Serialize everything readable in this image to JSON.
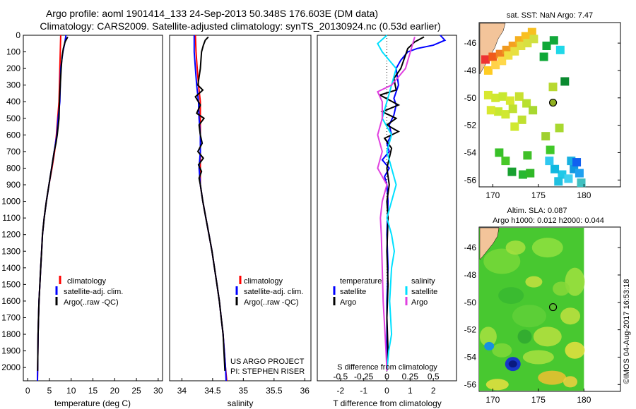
{
  "figure": {
    "title_line1": "Argo profile: aoml 1901414_133 24-Sep-2013 50.348S 176.603E (DM data)",
    "title_line2": "Climatology: CARS2009. Satellite-adjusted climatology: synTS_20130924.nc (0.53d earlier)",
    "project_line1": "US ARGO PROJECT",
    "project_line2": "PI: STEPHEN RISER",
    "watermark": "©IMOS 04-Aug-2017 16:53:18"
  },
  "colors": {
    "climatology": "#ff0000",
    "satellite": "#0000ff",
    "argo": "#000000",
    "s_satellite": "#00e0ff",
    "s_argo": "#e040e0"
  },
  "chart_data": [
    {
      "type": "line",
      "id": "temperature",
      "xlabel": "temperature (deg C)",
      "ylabel": "",
      "xlim": [
        -1,
        31
      ],
      "xticks": [
        "0",
        "5",
        "10",
        "15",
        "20",
        "25",
        "30"
      ],
      "xtick_values": [
        0,
        5,
        10,
        15,
        20,
        25,
        30
      ],
      "ylim": [
        0,
        2080
      ],
      "yticks": [
        "0",
        "100",
        "200",
        "300",
        "400",
        "500",
        "600",
        "700",
        "800",
        "900",
        "1000",
        "1100",
        "1200",
        "1300",
        "1400",
        "1500",
        "1600",
        "1700",
        "1800",
        "1900",
        "2000"
      ],
      "ytick_values": [
        0,
        100,
        200,
        300,
        400,
        500,
        600,
        700,
        800,
        900,
        1000,
        1100,
        1200,
        1300,
        1400,
        1500,
        1600,
        1700,
        1800,
        1900,
        2000
      ],
      "legend": [
        "climatology",
        "satellite-adj. clim.",
        "Argo(..raw -QC)"
      ],
      "legend_placement": "lower-center",
      "series": [
        {
          "name": "climatology",
          "color_key": "climatology",
          "x": [
            7.6,
            7.5,
            7.4,
            7.3,
            7.2,
            6.9,
            6.6,
            6.2,
            5.6,
            4.9,
            4.3,
            3.8,
            3.4,
            3.2,
            3.0,
            2.8,
            2.6,
            2.5,
            2.4,
            2.35,
            2.3,
            2.25
          ],
          "y": [
            0,
            100,
            200,
            300,
            400,
            500,
            600,
            700,
            800,
            900,
            1000,
            1100,
            1200,
            1300,
            1400,
            1500,
            1600,
            1700,
            1800,
            1900,
            2000,
            2080
          ]
        },
        {
          "name": "satellite-adj. clim.",
          "color_key": "satellite",
          "x": [
            8.8,
            8.5,
            8.1,
            7.6,
            7.4,
            7.0,
            6.7,
            6.1,
            5.5,
            4.9,
            4.3,
            3.8,
            3.4,
            3.2,
            3.0,
            2.8,
            2.6,
            2.5,
            2.4,
            2.35,
            2.3,
            2.25
          ],
          "y": [
            0,
            50,
            100,
            200,
            400,
            500,
            600,
            700,
            800,
            900,
            1000,
            1100,
            1200,
            1300,
            1400,
            1500,
            1600,
            1700,
            1800,
            1900,
            2000,
            2080
          ]
        },
        {
          "name": "Argo(..raw -QC)",
          "color_key": "argo",
          "x": [
            9.2,
            8.6,
            8.2,
            7.9,
            7.7,
            7.5,
            7.3,
            7.2,
            6.8,
            6.5,
            6.1,
            5.5,
            4.9,
            4.3,
            3.8,
            3.4,
            3.2,
            3.0,
            2.8,
            2.6,
            2.5,
            2.4,
            2.35,
            2.3
          ],
          "y": [
            10,
            40,
            80,
            130,
            200,
            300,
            400,
            500,
            600,
            650,
            700,
            800,
            900,
            1000,
            1100,
            1200,
            1300,
            1400,
            1500,
            1600,
            1700,
            1800,
            1900,
            2020
          ]
        }
      ]
    },
    {
      "type": "line",
      "id": "salinity",
      "xlabel": "salinity",
      "xlim": [
        33.8,
        36.1
      ],
      "xticks": [
        "34",
        "34.5",
        "35",
        "35.5",
        "36"
      ],
      "xtick_values": [
        34,
        34.5,
        35,
        35.5,
        36
      ],
      "ylim": [
        0,
        2080
      ],
      "legend": [
        "climatology",
        "satellite-adj. clim.",
        "Argo(..raw -QC)"
      ],
      "legend_placement": "lower-center",
      "series": [
        {
          "name": "climatology",
          "color_key": "climatology",
          "x": [
            34.22,
            34.23,
            34.25,
            34.27,
            34.3,
            34.3,
            34.3,
            34.3,
            34.3,
            34.3,
            34.34,
            34.39,
            34.44,
            34.49,
            34.53,
            34.57,
            34.61,
            34.64,
            34.67,
            34.69,
            34.71,
            34.73
          ],
          "y": [
            0,
            100,
            200,
            300,
            400,
            500,
            600,
            700,
            800,
            900,
            1000,
            1100,
            1200,
            1300,
            1400,
            1500,
            1600,
            1700,
            1800,
            1900,
            2000,
            2080
          ]
        },
        {
          "name": "satellite-adj. clim.",
          "color_key": "satellite",
          "x": [
            34.2,
            34.2,
            34.22,
            34.24,
            34.27,
            34.28,
            34.3,
            34.3,
            34.28,
            34.3,
            34.34,
            34.39,
            34.44,
            34.49,
            34.53,
            34.57,
            34.61,
            34.64,
            34.67,
            34.69,
            34.71,
            34.72
          ],
          "y": [
            0,
            100,
            200,
            300,
            400,
            500,
            600,
            700,
            800,
            900,
            1000,
            1100,
            1200,
            1300,
            1400,
            1500,
            1600,
            1700,
            1800,
            1900,
            2000,
            2080
          ]
        },
        {
          "name": "Argo(..raw -QC)",
          "color_key": "argo",
          "x": [
            34.43,
            34.38,
            34.35,
            34.32,
            34.3,
            34.26,
            34.34,
            34.22,
            34.3,
            34.24,
            34.36,
            34.28,
            34.3,
            34.33,
            34.26,
            34.35,
            34.27,
            34.32,
            34.28,
            34.3,
            34.34,
            34.39,
            34.44,
            34.49,
            34.53,
            34.57,
            34.61,
            34.64,
            34.67,
            34.7
          ],
          "y": [
            10,
            30,
            60,
            100,
            200,
            300,
            330,
            370,
            420,
            470,
            500,
            540,
            600,
            650,
            700,
            740,
            780,
            820,
            860,
            900,
            1000,
            1100,
            1200,
            1300,
            1400,
            1500,
            1600,
            1700,
            1800,
            2020
          ]
        }
      ]
    },
    {
      "type": "line",
      "id": "differences",
      "xlabel": "T difference from climatology",
      "xlabel_top": "S difference from climatology",
      "xlim_T": [
        -3,
        3
      ],
      "xticks_T": [
        "-2",
        "-1",
        "0",
        "1",
        "2"
      ],
      "xtick_values_T": [
        -2,
        -1,
        0,
        1,
        2
      ],
      "xticks_S": [
        "-0.5",
        "-0.25",
        "0",
        "0.25",
        "0.5"
      ],
      "xtick_values_S": [
        -0.5,
        -0.25,
        0,
        0.25,
        0.5
      ],
      "ylim": [
        0,
        2080
      ],
      "legend_left_title": "temperature",
      "legend_right_title": "salinity",
      "legend_left": [
        "satellite",
        "Argo"
      ],
      "legend_right": [
        "satellite",
        "Argo"
      ],
      "series": [
        {
          "name": "T satellite",
          "color_key": "satellite",
          "x": [
            2.3,
            2.5,
            2.0,
            1.3,
            0.9,
            0.6,
            0.4,
            0.5,
            0.3,
            0.4,
            0.3,
            0.1,
            0.2,
            0.0,
            0.1,
            -0.2,
            0.1,
            -0.1,
            0.0,
            0.05,
            0.0,
            0.05,
            0.0,
            0.0,
            0.0
          ],
          "y": [
            0,
            30,
            60,
            80,
            100,
            150,
            200,
            300,
            380,
            420,
            480,
            540,
            600,
            650,
            700,
            750,
            800,
            850,
            900,
            1000,
            1200,
            1400,
            1600,
            1800,
            2020
          ]
        },
        {
          "name": "T Argo",
          "color_key": "argo",
          "x": [
            1.6,
            1.2,
            0.9,
            0.8,
            0.6,
            0.3,
            0.4,
            -0.3,
            0.5,
            -0.2,
            0.4,
            0.0,
            0.5,
            -0.1,
            0.2,
            0.1,
            0.0,
            0.1,
            0.0,
            0.05,
            0.0,
            0.05,
            0.0,
            0.05,
            0.0
          ],
          "y": [
            10,
            40,
            80,
            120,
            200,
            260,
            330,
            360,
            420,
            460,
            500,
            540,
            580,
            620,
            680,
            740,
            800,
            900,
            1000,
            1100,
            1300,
            1500,
            1700,
            1900,
            2020
          ]
        },
        {
          "name": "S satellite",
          "color_key": "s_satellite",
          "x": [
            0.0,
            -0.1,
            -0.05,
            0.1,
            0.05,
            0.0,
            -0.05,
            0.05,
            0.0,
            0.05,
            0.1,
            0.05,
            0.0,
            0.05,
            0.08,
            0.05,
            0.03,
            0.05,
            0.02,
            0.0
          ],
          "y": [
            0,
            50,
            100,
            200,
            300,
            400,
            500,
            600,
            700,
            800,
            900,
            1000,
            1100,
            1200,
            1300,
            1400,
            1600,
            1800,
            1900,
            2020
          ]
        },
        {
          "name": "S Argo",
          "color_key": "s_argo",
          "x": [
            0.3,
            0.2,
            0.05,
            -0.1,
            -0.05,
            -0.05,
            -0.1,
            -0.05,
            -0.1,
            -0.05,
            0.0,
            -0.05,
            -0.07,
            -0.06,
            -0.05,
            -0.04,
            -0.02,
            -0.01,
            0.0
          ],
          "y": [
            10,
            200,
            300,
            340,
            400,
            500,
            600,
            700,
            800,
            850,
            900,
            1000,
            1100,
            1200,
            1400,
            1600,
            1800,
            1900,
            2020
          ]
        }
      ]
    },
    {
      "type": "heatmap",
      "id": "sst_map",
      "title": "sat. SST: NaN Argo: 7.47",
      "xlim": [
        168.5,
        184
      ],
      "ylim": [
        -56.5,
        -44.5
      ],
      "xticks": [
        "170",
        "175",
        "180"
      ],
      "xtick_values": [
        170,
        175,
        180
      ],
      "yticks": [
        "-46",
        "-48",
        "-50",
        "-52",
        "-54",
        "-56"
      ],
      "ytick_values": [
        -46,
        -48,
        -50,
        -52,
        -54,
        -56
      ],
      "marker": {
        "lon": 176.603,
        "lat": -50.348
      }
    },
    {
      "type": "heatmap",
      "id": "sla_map",
      "title_line1": "Altim. SLA: 0.087",
      "title_line2": "Argo h1000: 0.012 h2000: 0.044",
      "xlim": [
        168.5,
        184
      ],
      "ylim": [
        -56.5,
        -44.5
      ],
      "xticks": [
        "170",
        "175",
        "180"
      ],
      "xtick_values": [
        170,
        175,
        180
      ],
      "yticks": [
        "-46",
        "-48",
        "-50",
        "-52",
        "-54",
        "-56"
      ],
      "ytick_values": [
        -46,
        -48,
        -50,
        -52,
        -54,
        -56
      ],
      "marker": {
        "lon": 176.603,
        "lat": -50.348
      }
    }
  ]
}
